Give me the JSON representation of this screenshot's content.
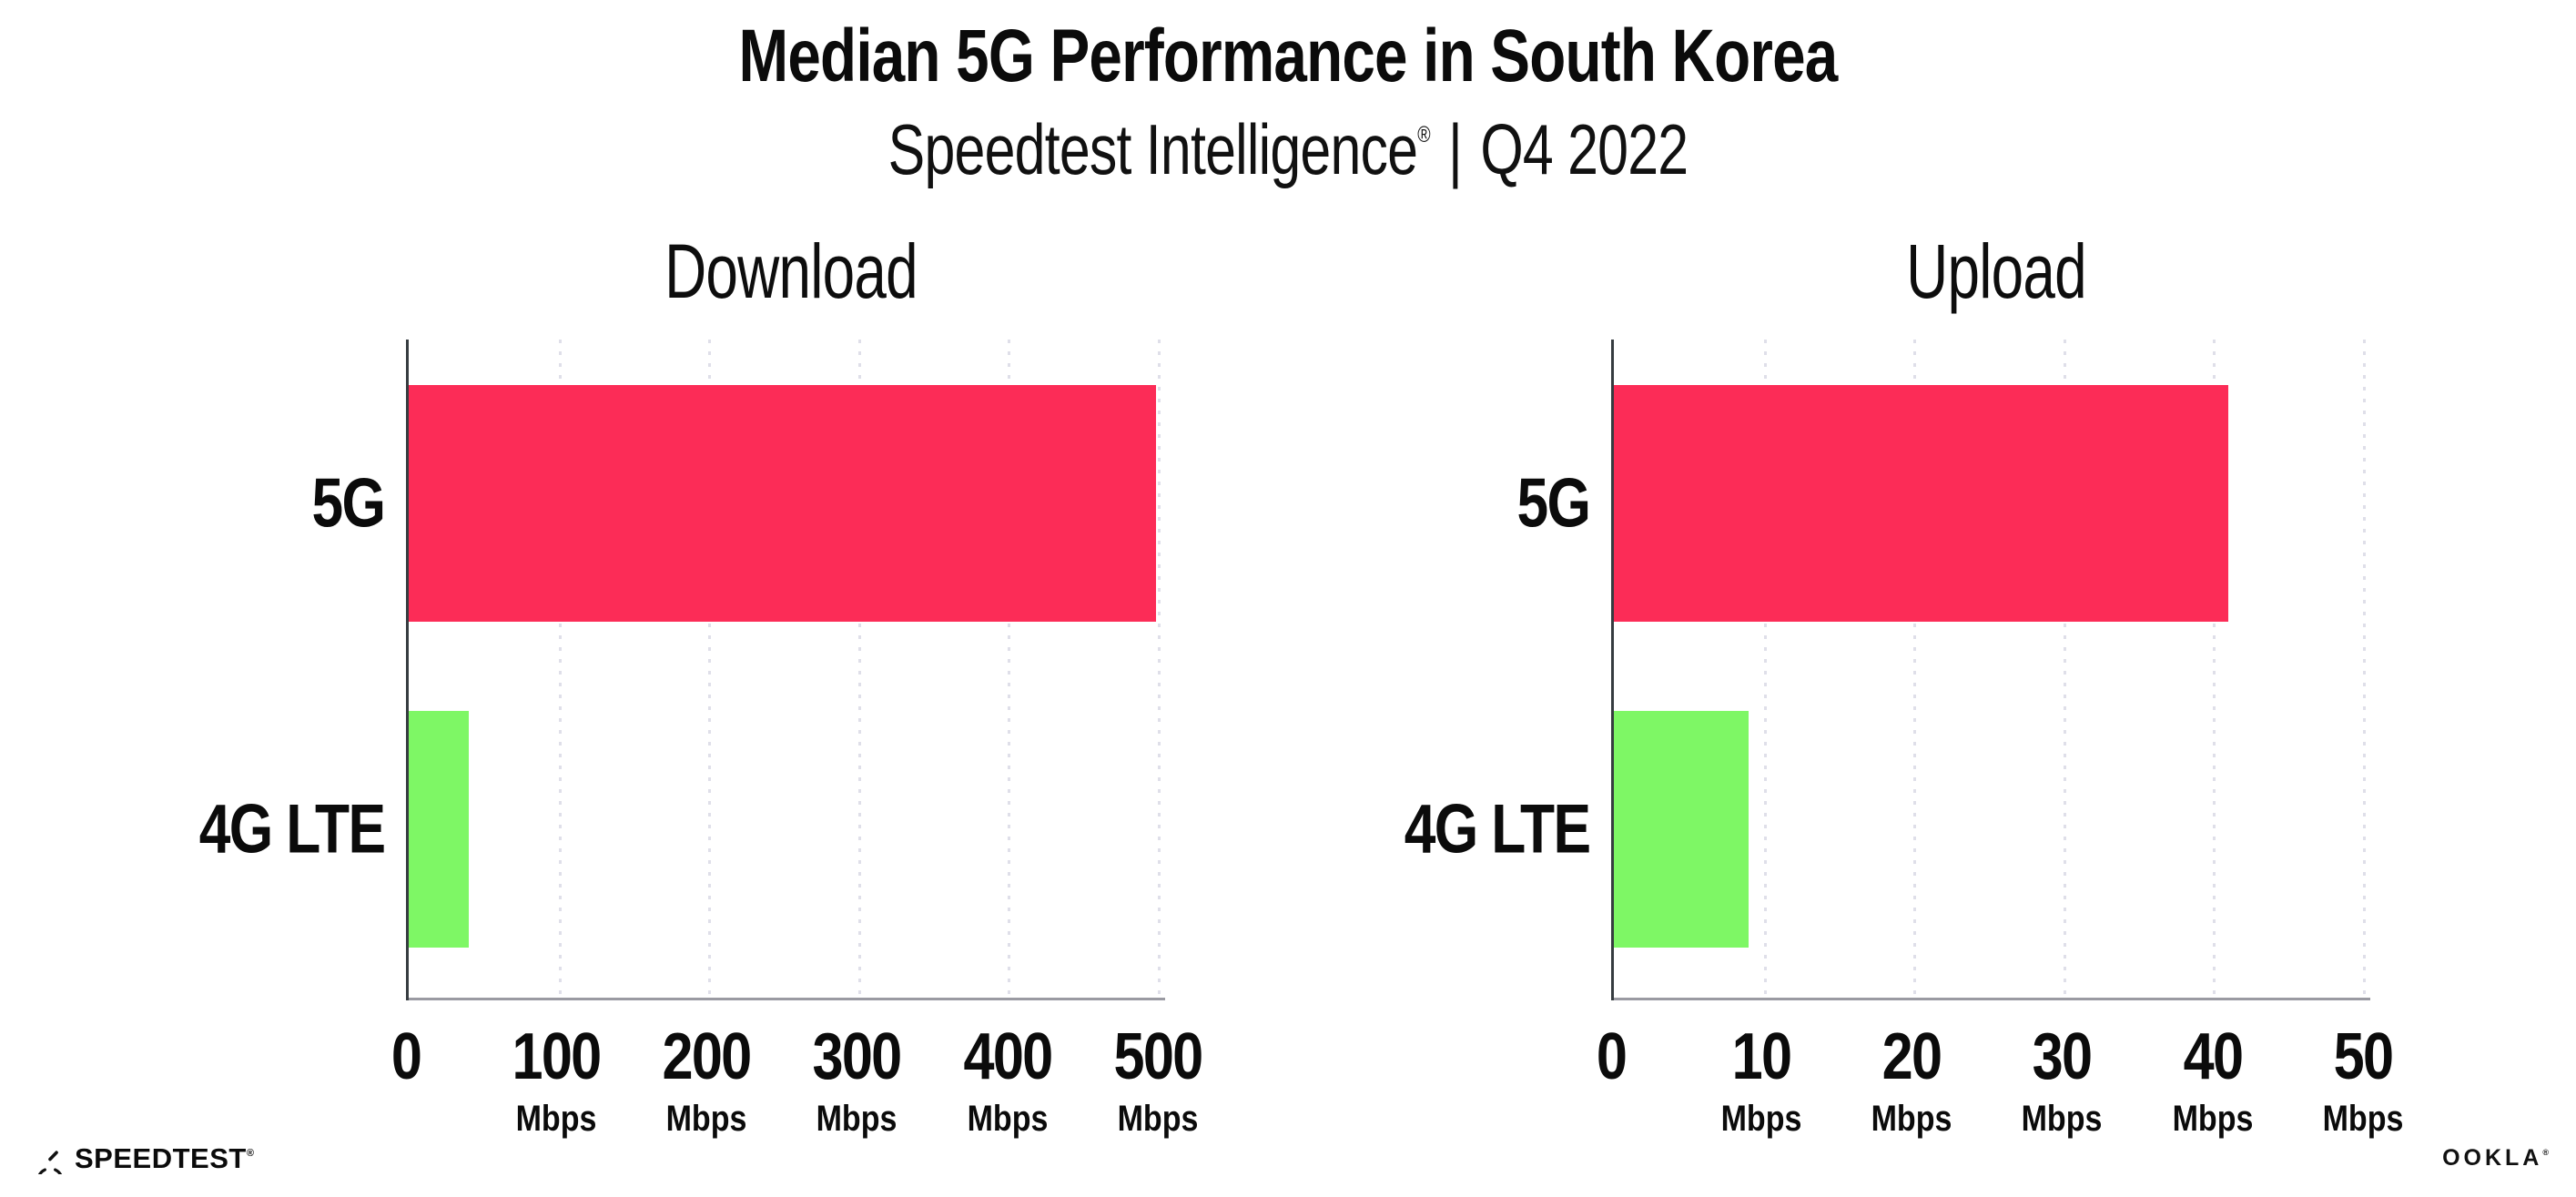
{
  "header": {
    "title": "Median 5G Performance in South Korea",
    "subtitle_brand": "Speedtest Intelligence",
    "subtitle_reg": "®",
    "subtitle_divider": "|",
    "subtitle_period": "Q4 2022"
  },
  "chart_data": [
    {
      "type": "bar",
      "orientation": "horizontal",
      "title": "Download",
      "categories": [
        "5G",
        "4G LTE"
      ],
      "values": [
        499,
        40
      ],
      "unit": "Mbps",
      "xlim": [
        0,
        500
      ],
      "xticks": [
        0,
        100,
        200,
        300,
        400,
        500
      ],
      "grid": "dotted-vertical",
      "legend": "none",
      "bar_colors": [
        "#fc2c57",
        "#7ef765"
      ]
    },
    {
      "type": "bar",
      "orientation": "horizontal",
      "title": "Upload",
      "categories": [
        "5G",
        "4G LTE"
      ],
      "values": [
        41,
        9
      ],
      "unit": "Mbps",
      "xlim": [
        0,
        50
      ],
      "xticks": [
        0,
        10,
        20,
        30,
        40,
        50
      ],
      "grid": "dotted-vertical",
      "legend": "none",
      "bar_colors": [
        "#fc2c57",
        "#7ef765"
      ]
    }
  ],
  "colors": {
    "bar_5g": "#fc2c57",
    "bar_4g_lte": "#7ef765",
    "gridline": "#dfdfe9",
    "x_axis": "#9a9aa2",
    "y_axis": "#363c40",
    "text": "#0b0b0b",
    "background": "#ffffff"
  },
  "footer": {
    "speedtest_label": "SPEEDTEST",
    "speedtest_mark": "®",
    "ookla_label": "OOKLA",
    "ookla_mark": "®"
  }
}
